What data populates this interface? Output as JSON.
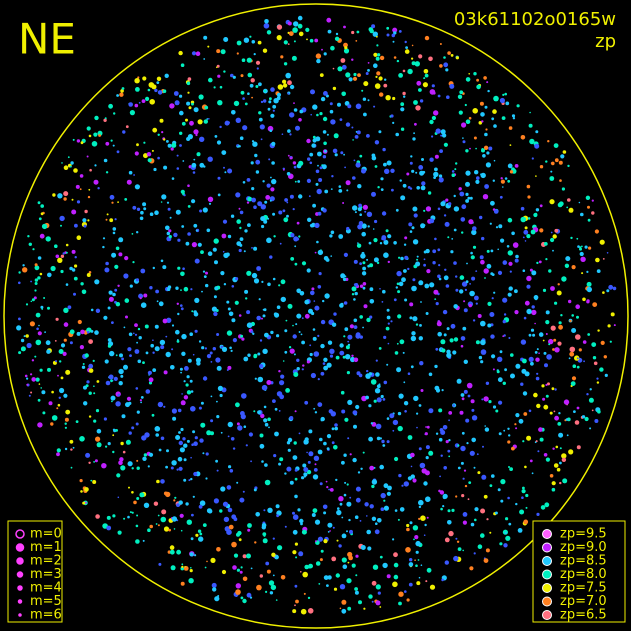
{
  "corner_label": "NE",
  "image_id": "03k61102o0165w",
  "color_key": "zp",
  "magnitude_legend": [
    {
      "label": "m=0",
      "hollow": true
    },
    {
      "label": "m=1"
    },
    {
      "label": "m=2"
    },
    {
      "label": "m=3"
    },
    {
      "label": "m=4"
    },
    {
      "label": "m=5"
    },
    {
      "label": "m=6"
    }
  ],
  "zp_legend": [
    {
      "label": "zp=9.5",
      "color": "#ff60ff"
    },
    {
      "label": "zp=9.0",
      "color": "#c020ff"
    },
    {
      "label": "zp=8.5",
      "color": "#20c8ff"
    },
    {
      "label": "zp=8.0",
      "color": "#00f0c0"
    },
    {
      "label": "zp=7.5",
      "color": "#f0f000"
    },
    {
      "label": "zp=7.0",
      "color": "#ff8020"
    },
    {
      "label": "zp=6.5",
      "color": "#ff7080"
    }
  ]
}
